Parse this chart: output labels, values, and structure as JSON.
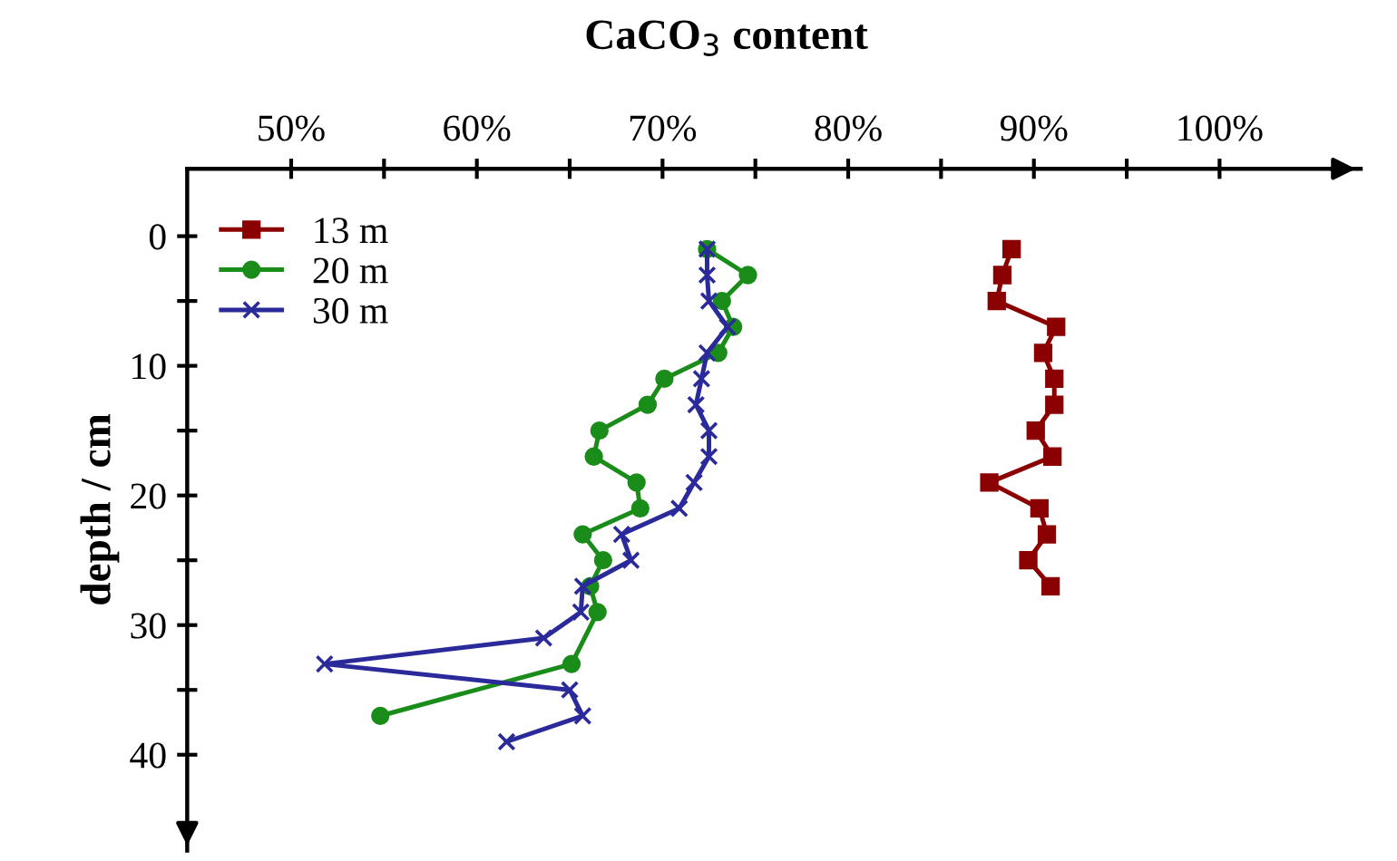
{
  "chart_data": {
    "type": "line",
    "title": "CaCO$_{3}$ content",
    "ylabel": "depth / cm",
    "xlim": [
      44.4,
      107.6
    ],
    "ylim": [
      47.4,
      -5.2
    ],
    "xticks": [
      {
        "value": 50,
        "label": "50%"
      },
      {
        "value": 55,
        "label": null
      },
      {
        "value": 60,
        "label": "60%"
      },
      {
        "value": 65,
        "label": null
      },
      {
        "value": 70,
        "label": "70%"
      },
      {
        "value": 75,
        "label": null
      },
      {
        "value": 80,
        "label": "80%"
      },
      {
        "value": 85,
        "label": null
      },
      {
        "value": 90,
        "label": "90%"
      },
      {
        "value": 95,
        "label": null
      },
      {
        "value": 100,
        "label": "100%"
      }
    ],
    "yticks": [
      0,
      {
        "value": 5,
        "label": null
      },
      10,
      {
        "value": 15,
        "label": null
      },
      20,
      {
        "value": 25,
        "label": null
      },
      30,
      {
        "value": 35,
        "label": null
      },
      40
    ],
    "grid": false,
    "legend": "top left",
    "series": [
      {
        "name": "13 m",
        "color": "#8b0000",
        "marker": "square",
        "x": [
          88.8,
          88.3,
          88.0,
          91.2,
          90.5,
          91.1,
          91.1,
          90.1,
          91.0,
          87.6,
          90.3,
          90.7,
          89.7,
          90.9
        ],
        "values": [
          1,
          3,
          5,
          7,
          9,
          11,
          13,
          15,
          17,
          19,
          21,
          23,
          25,
          27
        ]
      },
      {
        "name": "20 m",
        "color": "#1a8c1a",
        "marker": "circle",
        "x": [
          72.4,
          74.6,
          73.2,
          73.8,
          73.0,
          70.1,
          69.2,
          66.6,
          66.3,
          68.6,
          68.8,
          65.7,
          66.8,
          66.1,
          66.5,
          65.1,
          54.8
        ],
        "values": [
          1,
          3,
          5,
          7,
          9,
          11,
          13,
          15,
          17,
          19,
          21,
          23,
          25,
          27,
          29,
          33,
          37
        ]
      },
      {
        "name": "30 m",
        "color": "#2a2a9a",
        "marker": "cross",
        "x": [
          72.4,
          72.4,
          72.5,
          73.5,
          72.4,
          72.1,
          71.8,
          72.5,
          72.5,
          71.7,
          70.9,
          67.8,
          68.3,
          65.7,
          65.6,
          63.6,
          51.8,
          65.0,
          65.7,
          61.6
        ],
        "values": [
          1,
          3,
          5,
          7,
          9,
          11,
          13,
          15,
          17,
          19,
          21,
          23,
          25,
          27,
          29,
          31,
          33,
          35,
          37,
          39
        ]
      }
    ]
  }
}
